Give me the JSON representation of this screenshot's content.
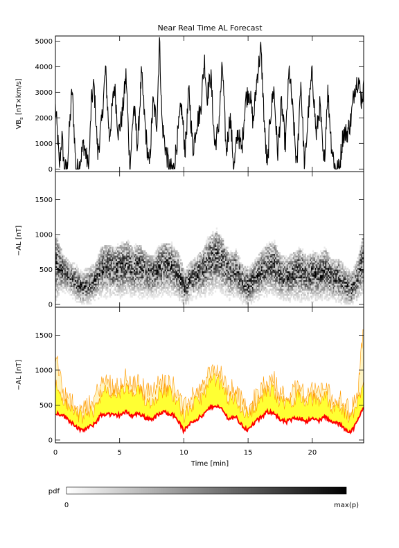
{
  "chart_data": {
    "title": "Near Real Time AL Forecast",
    "xlabel": "Time [min]",
    "xlim": [
      0,
      24
    ],
    "x_ticks": [
      0,
      5,
      10,
      15,
      20
    ],
    "panels": [
      {
        "id": "vbs",
        "type": "line",
        "ylabel": "VBs [nT×km/s]",
        "ylabel_main": "VB",
        "ylabel_sub": "s",
        "ylabel_rest": " [nT×km/s]",
        "ylim": [
          -100,
          5200
        ],
        "y_ticks": [
          0,
          1000,
          2000,
          3000,
          4000,
          5000
        ],
        "line_color": "#000000",
        "key_points": {
          "x": [
            0,
            0.2,
            0.3,
            0.5,
            0.7,
            0.9,
            1.1,
            1.3,
            1.6,
            1.8,
            2.2,
            2.6,
            2.8,
            3.0,
            3.3,
            3.6,
            3.9,
            4.2,
            4.6,
            4.9,
            5.2,
            5.5,
            5.8,
            6.1,
            6.4,
            6.7,
            7.0,
            7.3,
            7.6,
            7.9,
            8.1,
            8.3,
            8.6,
            8.9,
            9.2,
            9.5,
            9.8,
            10.1,
            10.4,
            10.7,
            11.0,
            11.3,
            11.6,
            11.8,
            12.1,
            12.4,
            12.7,
            13.0,
            13.3,
            13.6,
            13.9,
            14.2,
            14.5,
            14.8,
            15.1,
            15.4,
            15.7,
            16.0,
            16.3,
            16.5,
            16.7,
            17.0,
            17.3,
            17.6,
            17.9,
            18.2,
            18.5,
            18.8,
            19.1,
            19.4,
            19.7,
            20.0,
            20.3,
            20.6,
            20.9,
            21.2,
            21.5,
            21.8,
            22.1,
            22.4,
            22.7,
            23.0,
            23.3,
            23.6,
            23.8,
            24.0
          ],
          "y": [
            2400,
            1100,
            0,
            1300,
            0,
            0,
            1600,
            3150,
            0,
            0,
            1000,
            0,
            2600,
            3300,
            600,
            1800,
            3900,
            1200,
            3300,
            1400,
            2100,
            3700,
            0,
            2500,
            900,
            3700,
            1600,
            0,
            2600,
            1800,
            5100,
            1800,
            700,
            0,
            0,
            1200,
            2500,
            700,
            3100,
            700,
            1800,
            2300,
            4300,
            2800,
            3700,
            900,
            1600,
            4100,
            600,
            2100,
            0,
            1500,
            700,
            2700,
            3100,
            1800,
            3600,
            4700,
            1400,
            0,
            1900,
            3200,
            600,
            2600,
            900,
            3900,
            2100,
            0,
            3500,
            0,
            2300,
            3800,
            1300,
            2500,
            0,
            3100,
            900,
            0,
            0,
            1400,
            1400,
            1900,
            3200,
            3550,
            2700,
            3100
          ]
        }
      },
      {
        "id": "al-pdf",
        "type": "heatmap",
        "ylabel": "−AL [nT]",
        "ylim": [
          -40,
          1900
        ],
        "y_ticks": [
          0,
          500,
          1000,
          1500
        ],
        "cell_minutes": 0.1,
        "cell_nT": 25
      },
      {
        "id": "al-forecast",
        "type": "area",
        "ylabel": "−AL [nT]",
        "ylim": [
          -40,
          1900
        ],
        "y_ticks": [
          0,
          500,
          1000,
          1500
        ],
        "band_color": "#ffff33",
        "outline_color": "#ff9900",
        "line_color": "#ff0000",
        "median": {
          "x": [
            0,
            0.5,
            1.0,
            1.5,
            2.0,
            2.5,
            3.0,
            3.5,
            4.0,
            4.5,
            5.0,
            5.5,
            6.0,
            6.5,
            7.0,
            7.5,
            8.0,
            8.5,
            9.0,
            9.5,
            10.0,
            10.5,
            11.0,
            11.5,
            12.0,
            12.5,
            13.0,
            13.5,
            14.0,
            14.5,
            15.0,
            15.5,
            16.0,
            16.5,
            17.0,
            17.5,
            18.0,
            18.5,
            19.0,
            19.5,
            20.0,
            20.5,
            21.0,
            21.5,
            22.0,
            22.5,
            23.0,
            23.5,
            24.0
          ],
          "y": [
            380,
            370,
            290,
            220,
            130,
            170,
            220,
            350,
            380,
            350,
            360,
            400,
            350,
            380,
            320,
            300,
            360,
            400,
            380,
            300,
            120,
            250,
            300,
            350,
            460,
            500,
            430,
            300,
            340,
            210,
            140,
            250,
            320,
            400,
            400,
            280,
            260,
            300,
            320,
            270,
            300,
            280,
            330,
            250,
            240,
            170,
            110,
            260,
            480
          ]
        },
        "upper": {
          "x": [
            0,
            0.5,
            1.0,
            1.5,
            2.0,
            2.5,
            3.0,
            3.5,
            4.0,
            4.5,
            5.0,
            5.5,
            6.0,
            6.5,
            7.0,
            7.5,
            8.0,
            8.5,
            9.0,
            9.5,
            10.0,
            10.5,
            11.0,
            11.5,
            12.0,
            12.5,
            13.0,
            13.5,
            14.0,
            14.5,
            15.0,
            15.5,
            16.0,
            16.5,
            17.0,
            17.5,
            18.0,
            18.5,
            19.0,
            19.5,
            20.0,
            20.5,
            21.0,
            21.5,
            22.0,
            22.5,
            23.0,
            23.5,
            24.0
          ],
          "y": [
            1250,
            720,
            540,
            520,
            400,
            460,
            570,
            780,
            850,
            760,
            800,
            880,
            750,
            820,
            700,
            650,
            790,
            840,
            810,
            700,
            420,
            580,
            670,
            760,
            960,
            1000,
            880,
            700,
            730,
            540,
            450,
            580,
            720,
            820,
            860,
            650,
            620,
            690,
            760,
            640,
            700,
            670,
            760,
            580,
            600,
            470,
            400,
            620,
            1700
          ]
        },
        "band_top": {
          "x": [
            0,
            0.5,
            1.0,
            1.5,
            2.0,
            2.5,
            3.0,
            3.5,
            4.0,
            4.5,
            5.0,
            5.5,
            6.0,
            6.5,
            7.0,
            7.5,
            8.0,
            8.5,
            9.0,
            9.5,
            10.0,
            10.5,
            11.0,
            11.5,
            12.0,
            12.5,
            13.0,
            13.5,
            14.0,
            14.5,
            15.0,
            15.5,
            16.0,
            16.5,
            17.0,
            17.5,
            18.0,
            18.5,
            19.0,
            19.5,
            20.0,
            20.5,
            21.0,
            21.5,
            22.0,
            22.5,
            23.0,
            23.5,
            24.0
          ],
          "y": [
            800,
            600,
            470,
            420,
            320,
            370,
            430,
            640,
            700,
            640,
            680,
            730,
            640,
            700,
            580,
            540,
            660,
            720,
            690,
            580,
            330,
            470,
            540,
            640,
            820,
            870,
            760,
            580,
            610,
            440,
            360,
            480,
            600,
            700,
            720,
            540,
            520,
            580,
            640,
            530,
            590,
            560,
            640,
            480,
            500,
            380,
            310,
            500,
            900
          ]
        }
      }
    ],
    "colorbar": {
      "label": "pdf",
      "min_label": "0",
      "max_label": "max(p)"
    }
  }
}
